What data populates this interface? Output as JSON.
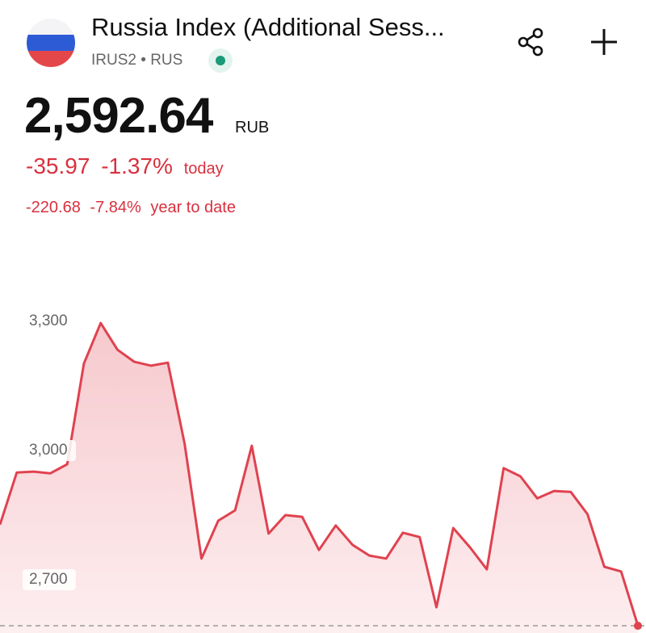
{
  "header": {
    "title": "Russia Index (Additional Sess...",
    "symbol": "IRUS2",
    "separator": "•",
    "exchange": "RUS"
  },
  "quote": {
    "price": "2,592.64",
    "currency": "RUB",
    "today": {
      "change": "-35.97",
      "percent": "-1.37%",
      "label": "today"
    },
    "ytd": {
      "change": "-220.68",
      "percent": "-7.84%",
      "label": "year to date"
    }
  },
  "chart_data": {
    "type": "area",
    "color": "#e0424f",
    "values": [
      2828,
      2949,
      2951,
      2947,
      2968,
      3202,
      3296,
      3234,
      3206,
      3197,
      3204,
      3015,
      2749,
      2837,
      2861,
      3011,
      2807,
      2850,
      2846,
      2769,
      2826,
      2781,
      2756,
      2749,
      2809,
      2799,
      2636,
      2820,
      2775,
      2724,
      2959,
      2940,
      2889,
      2906,
      2904,
      2852,
      2730,
      2719,
      2593
    ],
    "ylim": [
      2576,
      3426
    ],
    "yticks": [
      {
        "value": 2700,
        "label": "2,700"
      },
      {
        "value": 3000,
        "label": "3,000"
      },
      {
        "value": 3300,
        "label": "3,300"
      }
    ]
  }
}
